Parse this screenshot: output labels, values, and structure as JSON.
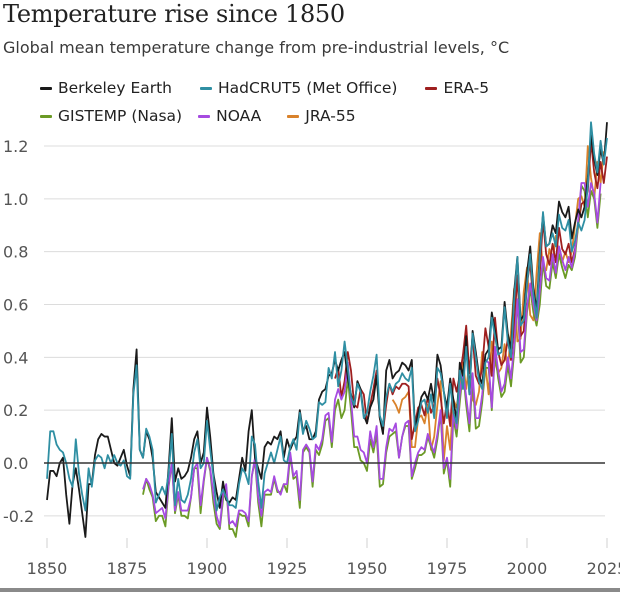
{
  "chart_data": {
    "type": "line",
    "title": "Temperature rise since 1850",
    "subtitle": "Global mean temperature change from pre-industrial levels, °C",
    "xlabel": "",
    "ylabel": "",
    "xlim": [
      1850,
      2025
    ],
    "ylim": [
      -0.3,
      1.3
    ],
    "x_ticks": [
      1850,
      1875,
      1900,
      1925,
      1950,
      1975,
      2000,
      2025
    ],
    "x_tick_labels": [
      "1850",
      "1875",
      "1900",
      "1925",
      "1950",
      "1975",
      "2000",
      "2025"
    ],
    "y_ticks": [
      -0.2,
      0.0,
      0.2,
      0.4,
      0.6,
      0.8,
      1.0,
      1.2
    ],
    "y_tick_labels": [
      "-0.2",
      "0.0",
      "0.2",
      "0.4",
      "0.6",
      "0.8",
      "1.0",
      "1.2"
    ],
    "grid": true,
    "zero_line": true,
    "legend_position": "top-left",
    "series": [
      {
        "name": "Berkeley Earth",
        "color": "#1a1a1a",
        "start_year": 1850,
        "values": [
          -0.14,
          -0.03,
          -0.03,
          -0.05,
          0.0,
          0.02,
          -0.12,
          -0.23,
          -0.08,
          -0.02,
          -0.1,
          -0.19,
          -0.28,
          -0.08,
          -0.08,
          0.03,
          0.09,
          0.11,
          0.1,
          0.1,
          0.05,
          0.0,
          -0.01,
          0.02,
          0.05,
          -0.01,
          -0.05,
          0.28,
          0.43,
          0.05,
          0.02,
          0.12,
          0.09,
          0.02,
          -0.11,
          -0.13,
          -0.15,
          -0.17,
          -0.02,
          0.17,
          -0.07,
          -0.02,
          -0.06,
          -0.05,
          -0.03,
          0.02,
          0.09,
          0.12,
          0.0,
          0.04,
          0.21,
          0.1,
          -0.04,
          -0.11,
          -0.17,
          -0.07,
          -0.14,
          -0.15,
          -0.13,
          -0.14,
          -0.06,
          0.02,
          -0.03,
          0.12,
          0.2,
          0.02,
          -0.02,
          -0.06,
          0.06,
          0.08,
          0.07,
          0.1,
          0.09,
          0.12,
          0.02,
          0.09,
          0.05,
          0.08,
          0.1,
          0.2,
          0.12,
          0.14,
          0.09,
          0.09,
          0.12,
          0.24,
          0.27,
          0.28,
          0.33,
          0.34,
          0.39,
          0.35,
          0.39,
          0.42,
          0.32,
          0.26,
          0.21,
          0.31,
          0.28,
          0.18,
          0.15,
          0.21,
          0.24,
          0.33,
          0.17,
          0.11,
          0.35,
          0.39,
          0.32,
          0.34,
          0.35,
          0.38,
          0.37,
          0.35,
          0.39,
          0.13,
          0.19,
          0.25,
          0.27,
          0.24,
          0.3,
          0.23,
          0.41,
          0.37,
          0.27,
          0.21,
          0.32,
          0.24,
          0.16,
          0.38,
          0.33,
          0.48,
          0.26,
          0.5,
          0.42,
          0.33,
          0.3,
          0.41,
          0.43,
          0.57,
          0.5,
          0.43,
          0.44,
          0.61,
          0.49,
          0.43,
          0.65,
          0.78,
          0.54,
          0.56,
          0.72,
          0.82,
          0.66,
          0.58,
          0.8,
          0.94,
          0.82,
          0.83,
          0.9,
          0.87,
          0.99,
          0.95,
          0.93,
          0.97,
          0.85,
          0.91,
          0.96,
          0.93,
          0.97,
          1.08,
          1.24,
          1.15,
          1.09,
          1.19,
          1.13,
          1.29
        ]
      },
      {
        "name": "HadCRUT5 (Met Office)",
        "color": "#2f8fa3",
        "start_year": 1850,
        "values": [
          -0.06,
          0.12,
          0.12,
          0.07,
          0.05,
          0.04,
          0.0,
          -0.06,
          -0.09,
          0.09,
          -0.04,
          -0.12,
          -0.18,
          -0.02,
          -0.09,
          0.01,
          0.03,
          0.02,
          -0.02,
          0.03,
          0.0,
          0.03,
          0.0,
          -0.01,
          0.01,
          -0.05,
          -0.06,
          0.26,
          0.37,
          0.05,
          0.02,
          0.13,
          0.1,
          0.05,
          -0.15,
          -0.12,
          -0.09,
          -0.12,
          -0.04,
          0.11,
          -0.16,
          -0.06,
          -0.14,
          -0.15,
          -0.12,
          -0.06,
          0.04,
          0.09,
          -0.02,
          0.0,
          0.16,
          0.05,
          -0.05,
          -0.18,
          -0.13,
          -0.1,
          -0.13,
          -0.16,
          -0.16,
          -0.17,
          -0.08,
          -0.02,
          -0.04,
          -0.08,
          0.1,
          0.07,
          -0.07,
          -0.17,
          -0.04,
          0.0,
          0.04,
          0.0,
          0.05,
          0.1,
          0.01,
          0.0,
          0.06,
          0.09,
          0.05,
          0.19,
          0.11,
          0.16,
          0.13,
          0.09,
          0.1,
          0.23,
          0.22,
          0.23,
          0.36,
          0.32,
          0.42,
          0.29,
          0.35,
          0.46,
          0.36,
          0.25,
          0.22,
          0.3,
          0.27,
          0.17,
          0.19,
          0.27,
          0.33,
          0.41,
          0.18,
          0.14,
          0.25,
          0.3,
          0.27,
          0.3,
          0.31,
          0.34,
          0.32,
          0.31,
          0.36,
          0.12,
          0.16,
          0.23,
          0.24,
          0.19,
          0.26,
          0.17,
          0.36,
          0.34,
          0.27,
          0.17,
          0.3,
          0.19,
          0.15,
          0.35,
          0.28,
          0.44,
          0.26,
          0.49,
          0.4,
          0.31,
          0.28,
          0.38,
          0.4,
          0.55,
          0.48,
          0.41,
          0.42,
          0.59,
          0.46,
          0.4,
          0.62,
          0.78,
          0.52,
          0.54,
          0.68,
          0.79,
          0.64,
          0.55,
          0.78,
          0.95,
          0.82,
          0.83,
          0.87,
          0.82,
          0.94,
          0.89,
          0.88,
          0.92,
          0.8,
          0.84,
          0.91,
          0.88,
          0.92,
          1.05,
          1.29,
          1.17,
          1.1,
          1.22,
          1.13,
          1.23
        ]
      },
      {
        "name": "ERA-5",
        "color": "#9e1f1f",
        "start_year": 1940,
        "values": [
          0.32,
          0.36,
          0.25,
          0.31,
          0.42,
          0.35,
          0.22,
          0.21,
          0.28,
          0.26,
          0.15,
          0.22,
          0.28,
          0.35,
          0.17,
          0.12,
          0.22,
          0.3,
          0.26,
          0.29,
          0.28,
          0.3,
          0.3,
          0.29,
          0.09,
          0.15,
          0.21,
          0.22,
          0.18,
          0.25,
          0.19,
          0.22,
          0.32,
          0.25,
          0.15,
          0.23,
          0.14,
          0.32,
          0.27,
          0.33,
          0.41,
          0.52,
          0.34,
          0.48,
          0.33,
          0.3,
          0.36,
          0.51,
          0.44,
          0.33,
          0.55,
          0.42,
          0.37,
          0.39,
          0.47,
          0.39,
          0.52,
          0.71,
          0.48,
          0.5,
          0.68,
          0.76,
          0.6,
          0.57,
          0.72,
          0.92,
          0.79,
          0.75,
          0.83,
          0.76,
          0.89,
          0.81,
          0.79,
          0.83,
          0.76,
          0.81,
          0.9,
          0.98,
          0.99,
          1.03,
          1.22,
          1.1,
          1.04,
          1.14,
          1.06,
          1.16
        ]
      },
      {
        "name": "GISTEMP (Nasa)",
        "color": "#6b9a25",
        "start_year": 1880,
        "values": [
          -0.12,
          -0.06,
          -0.1,
          -0.13,
          -0.22,
          -0.2,
          -0.2,
          -0.24,
          -0.09,
          0.0,
          -0.19,
          -0.12,
          -0.2,
          -0.2,
          -0.21,
          -0.13,
          -0.02,
          -0.02,
          -0.19,
          -0.07,
          0.02,
          -0.03,
          -0.15,
          -0.23,
          -0.25,
          -0.14,
          -0.09,
          -0.25,
          -0.25,
          -0.28,
          -0.19,
          -0.2,
          -0.2,
          -0.24,
          -0.05,
          0.01,
          -0.15,
          -0.24,
          -0.12,
          -0.12,
          -0.12,
          -0.06,
          -0.11,
          -0.11,
          -0.08,
          -0.11,
          0.03,
          -0.06,
          -0.05,
          -0.17,
          0.04,
          0.06,
          0.04,
          -0.09,
          0.05,
          0.03,
          0.07,
          0.16,
          0.17,
          0.06,
          0.2,
          0.24,
          0.17,
          0.2,
          0.32,
          0.2,
          0.06,
          0.06,
          0.01,
          0.0,
          -0.03,
          0.09,
          0.04,
          0.11,
          -0.09,
          -0.08,
          0.04,
          0.1,
          0.11,
          0.12,
          0.02,
          0.1,
          0.14,
          0.14,
          -0.06,
          -0.02,
          0.03,
          0.03,
          0.04,
          0.1,
          0.06,
          0.02,
          0.09,
          0.19,
          -0.04,
          0.01,
          -0.09,
          0.17,
          0.1,
          0.23,
          0.35,
          0.22,
          0.12,
          0.32,
          0.13,
          0.14,
          0.23,
          0.36,
          0.36,
          0.2,
          0.42,
          0.32,
          0.25,
          0.27,
          0.37,
          0.29,
          0.42,
          0.62,
          0.38,
          0.4,
          0.57,
          0.66,
          0.57,
          0.52,
          0.6,
          0.76,
          0.67,
          0.66,
          0.76,
          0.7,
          0.79,
          0.74,
          0.7,
          0.75,
          0.73,
          0.78,
          0.9,
          1.05,
          1.03,
          0.93,
          1.03,
          1.0,
          0.89,
          1.02
        ]
      },
      {
        "name": "NOAA",
        "color": "#a64be0",
        "start_year": 1880,
        "values": [
          -0.1,
          -0.06,
          -0.08,
          -0.12,
          -0.19,
          -0.18,
          -0.17,
          -0.21,
          -0.08,
          0.0,
          -0.18,
          -0.11,
          -0.18,
          -0.18,
          -0.18,
          -0.13,
          -0.02,
          0.0,
          -0.16,
          -0.06,
          0.02,
          -0.02,
          -0.12,
          -0.2,
          -0.24,
          -0.12,
          -0.08,
          -0.23,
          -0.22,
          -0.24,
          -0.18,
          -0.18,
          -0.19,
          -0.22,
          -0.05,
          0.02,
          -0.13,
          -0.2,
          -0.11,
          -0.1,
          -0.11,
          -0.05,
          -0.1,
          -0.12,
          -0.08,
          -0.08,
          0.04,
          -0.05,
          -0.03,
          -0.14,
          0.05,
          0.07,
          0.05,
          -0.07,
          0.07,
          0.05,
          0.09,
          0.18,
          0.19,
          0.08,
          0.24,
          0.28,
          0.24,
          0.27,
          0.38,
          0.24,
          0.1,
          0.1,
          0.05,
          0.04,
          0.0,
          0.12,
          0.06,
          0.14,
          -0.06,
          -0.06,
          0.06,
          0.13,
          0.12,
          0.15,
          0.02,
          0.1,
          0.15,
          0.16,
          -0.05,
          0.0,
          0.04,
          0.06,
          0.05,
          0.11,
          0.07,
          0.04,
          0.11,
          0.2,
          -0.02,
          0.02,
          -0.06,
          0.19,
          0.13,
          0.26,
          0.35,
          0.25,
          0.15,
          0.34,
          0.17,
          0.17,
          0.26,
          0.39,
          0.38,
          0.21,
          0.44,
          0.35,
          0.27,
          0.3,
          0.4,
          0.32,
          0.45,
          0.62,
          0.42,
          0.43,
          0.59,
          0.68,
          0.6,
          0.54,
          0.65,
          0.78,
          0.7,
          0.69,
          0.79,
          0.72,
          0.82,
          0.77,
          0.73,
          0.78,
          0.74,
          0.8,
          0.92,
          1.06,
          1.06,
          0.97,
          1.06,
          1.02,
          0.91,
          1.06
        ]
      },
      {
        "name": "JRA-55",
        "color": "#d9822b",
        "start_year": 1958,
        "values": [
          0.24,
          0.22,
          0.19,
          0.24,
          0.25,
          0.27,
          0.06,
          0.06,
          0.17,
          0.18,
          0.15,
          0.22,
          0.05,
          0.1,
          0.22,
          0.31,
          0.01,
          0.14,
          0.05,
          0.24,
          0.21,
          0.28,
          0.38,
          0.28,
          0.38,
          0.24,
          0.22,
          0.27,
          0.42,
          0.37,
          0.26,
          0.46,
          0.38,
          0.34,
          0.36,
          0.45,
          0.35,
          0.5,
          0.66,
          0.46,
          0.47,
          0.65,
          0.74,
          0.56,
          0.54,
          0.72,
          0.87,
          0.74,
          0.73,
          0.81,
          0.76,
          0.86,
          0.79,
          0.76,
          0.8,
          0.76,
          0.8,
          0.9,
          1.0,
          1.01,
          0.97,
          1.2,
          1.08,
          1.0,
          1.14,
          1.06,
          1.18
        ]
      }
    ]
  }
}
